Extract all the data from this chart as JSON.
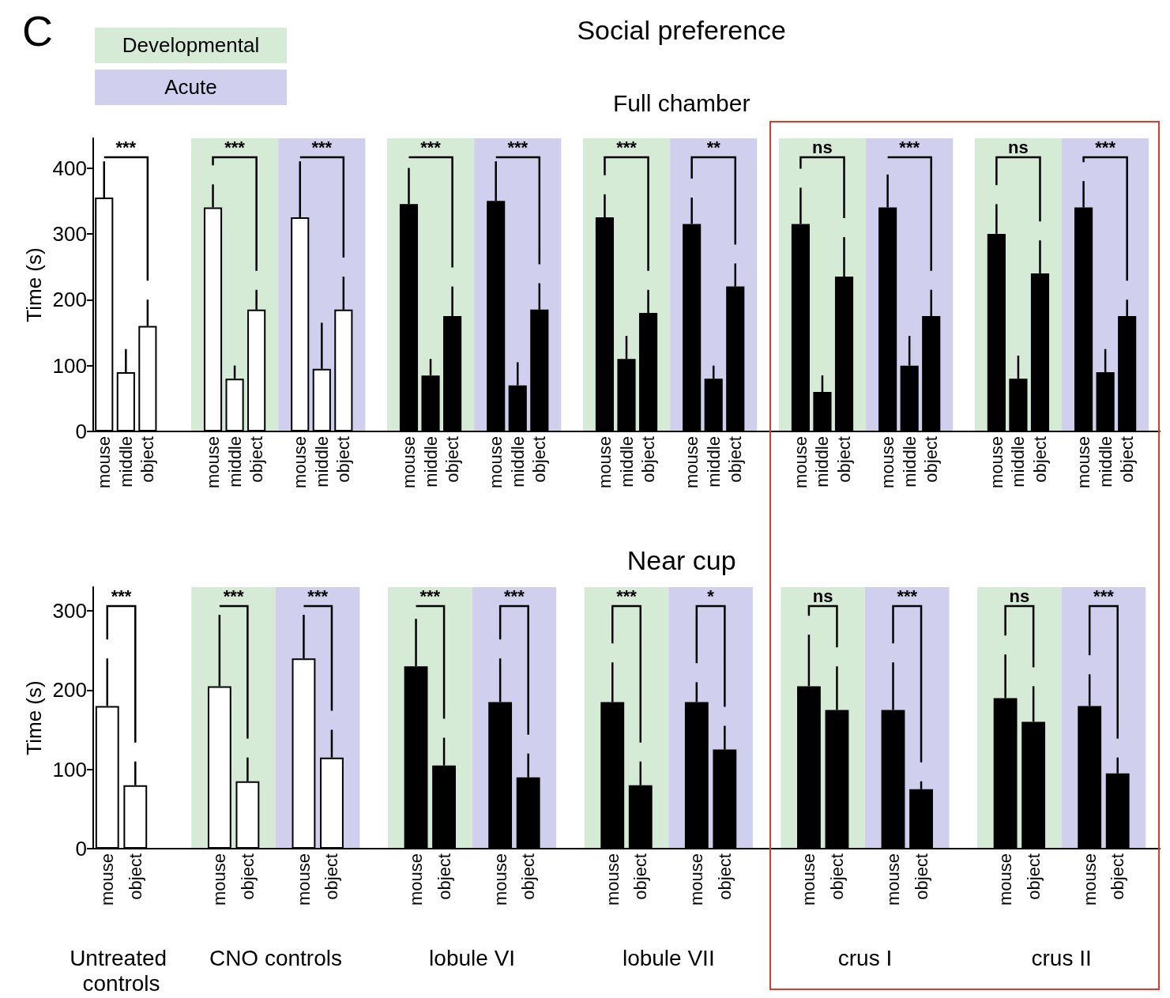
{
  "chart_data": [
    {
      "type": "other",
      "categories": [
        "Developmental",
        "Acute"
      ],
      "colors": [
        "#d5ebd6",
        "#d0d0ee"
      ],
      "annotations": [
        "C"
      ]
    },
    {
      "type": "bar",
      "title": "Social preference",
      "subtitle": "Full chamber",
      "ylabel": "Time (s)",
      "categories": [
        "mouse",
        "middle",
        "object",
        null,
        null,
        "mouse",
        "middle",
        "object",
        null,
        "mouse",
        "middle",
        "object",
        null,
        null,
        "mouse",
        "middle",
        "object",
        null,
        "mouse",
        "middle",
        "object",
        null,
        null,
        "mouse",
        "middle",
        "object",
        null,
        "mouse",
        "middle",
        "object",
        null,
        null,
        "mouse",
        "middle",
        "object",
        null,
        "mouse",
        "middle",
        "object",
        null,
        null,
        "mouse",
        "middle",
        "object",
        null,
        "mouse",
        "middle",
        "object",
        null
      ],
      "values": [
        355,
        90,
        160,
        null,
        null,
        340,
        80,
        185,
        null,
        325,
        95,
        185,
        null,
        null,
        345,
        85,
        175,
        null,
        350,
        70,
        185,
        null,
        null,
        325,
        110,
        180,
        null,
        315,
        80,
        220,
        null,
        null,
        315,
        60,
        235,
        null,
        340,
        100,
        175,
        null,
        null,
        300,
        80,
        240,
        null,
        340,
        90,
        175,
        null
      ],
      "colors": [
        "#ffffff",
        "#ffffff",
        "#ffffff",
        null,
        null,
        "#ffffff",
        "#ffffff",
        "#ffffff",
        null,
        "#ffffff",
        "#ffffff",
        "#ffffff",
        null,
        null,
        "#000000",
        "#000000",
        "#000000",
        null,
        "#000000",
        "#000000",
        "#000000",
        null,
        null,
        "#000000",
        "#000000",
        "#000000",
        null,
        "#000000",
        "#000000",
        "#000000",
        null,
        null,
        "#000000",
        "#000000",
        "#000000",
        null,
        "#000000",
        "#000000",
        "#000000",
        null,
        null,
        "#000000",
        "#000000",
        "#000000",
        null,
        "#000000",
        "#000000",
        "#000000",
        null
      ],
      "errors": [
        [
          355,
          410
        ],
        [
          90,
          125
        ],
        [
          160,
          200
        ],
        null,
        null,
        [
          340,
          375
        ],
        [
          80,
          100
        ],
        [
          185,
          215
        ],
        null,
        [
          325,
          410
        ],
        [
          95,
          165
        ],
        [
          185,
          235
        ],
        null,
        null,
        [
          345,
          400
        ],
        [
          85,
          110
        ],
        [
          175,
          220
        ],
        null,
        [
          350,
          410
        ],
        [
          70,
          105
        ],
        [
          185,
          225
        ],
        null,
        null,
        [
          325,
          360
        ],
        [
          110,
          145
        ],
        [
          180,
          215
        ],
        null,
        [
          315,
          355
        ],
        [
          80,
          100
        ],
        [
          220,
          255
        ],
        null,
        null,
        [
          315,
          370
        ],
        [
          60,
          85
        ],
        [
          235,
          295
        ],
        null,
        [
          340,
          390
        ],
        [
          100,
          145
        ],
        [
          175,
          215
        ],
        null,
        null,
        [
          300,
          345
        ],
        [
          80,
          115
        ],
        [
          240,
          290
        ],
        null,
        [
          340,
          380
        ],
        [
          90,
          125
        ],
        [
          175,
          200
        ],
        null
      ],
      "ylim": [
        0,
        445
      ],
      "yticks": [
        0,
        100,
        200,
        300,
        400
      ],
      "annotations": [
        "***",
        "***",
        "***",
        "***",
        "***",
        "***",
        "**",
        "ns",
        "***",
        "ns",
        "***"
      ]
    },
    {
      "type": "bar",
      "title": "Near cup",
      "ylabel": "Time (s)",
      "categories": [
        "mouse",
        "object",
        null,
        null,
        "mouse",
        "object",
        null,
        "mouse",
        "object",
        null,
        null,
        "mouse",
        "object",
        null,
        "mouse",
        "object",
        null,
        null,
        "mouse",
        "object",
        null,
        "mouse",
        "object",
        null,
        null,
        "mouse",
        "object",
        null,
        "mouse",
        "object",
        null,
        null,
        "mouse",
        "object",
        null,
        "mouse",
        "object",
        null
      ],
      "values": [
        180,
        80,
        null,
        null,
        205,
        85,
        null,
        240,
        115,
        null,
        null,
        230,
        105,
        null,
        185,
        90,
        null,
        null,
        185,
        80,
        null,
        185,
        125,
        null,
        null,
        205,
        175,
        null,
        175,
        75,
        null,
        null,
        190,
        160,
        null,
        180,
        95,
        null
      ],
      "colors": [
        "#ffffff",
        "#ffffff",
        null,
        null,
        "#ffffff",
        "#ffffff",
        null,
        "#ffffff",
        "#ffffff",
        null,
        null,
        "#000000",
        "#000000",
        null,
        "#000000",
        "#000000",
        null,
        null,
        "#000000",
        "#000000",
        null,
        "#000000",
        "#000000",
        null,
        null,
        "#000000",
        "#000000",
        null,
        "#000000",
        "#000000",
        null,
        null,
        "#000000",
        "#000000",
        null,
        "#000000",
        "#000000",
        null
      ],
      "errors": [
        [
          180,
          240
        ],
        [
          80,
          110
        ],
        null,
        null,
        [
          205,
          295
        ],
        [
          85,
          115
        ],
        null,
        [
          240,
          295
        ],
        [
          115,
          150
        ],
        null,
        null,
        [
          230,
          290
        ],
        [
          105,
          140
        ],
        null,
        [
          185,
          240
        ],
        [
          90,
          120
        ],
        null,
        null,
        [
          185,
          235
        ],
        [
          80,
          110
        ],
        null,
        [
          185,
          210
        ],
        [
          125,
          155
        ],
        null,
        null,
        [
          205,
          270
        ],
        [
          175,
          230
        ],
        null,
        [
          175,
          235
        ],
        [
          75,
          85
        ],
        null,
        null,
        [
          190,
          245
        ],
        [
          160,
          205
        ],
        null,
        [
          180,
          220
        ],
        [
          95,
          115
        ],
        null
      ],
      "ylim": [
        0,
        330
      ],
      "yticks": [
        0,
        100,
        200,
        300
      ],
      "annotations": [
        "***",
        "***",
        "***",
        "***",
        "***",
        "***",
        "*",
        "ns",
        "***",
        "ns",
        "***",
        "Untreated controls",
        "CNO controls",
        "lobule VI",
        "lobule VII",
        "crus I",
        "crus II"
      ]
    }
  ]
}
